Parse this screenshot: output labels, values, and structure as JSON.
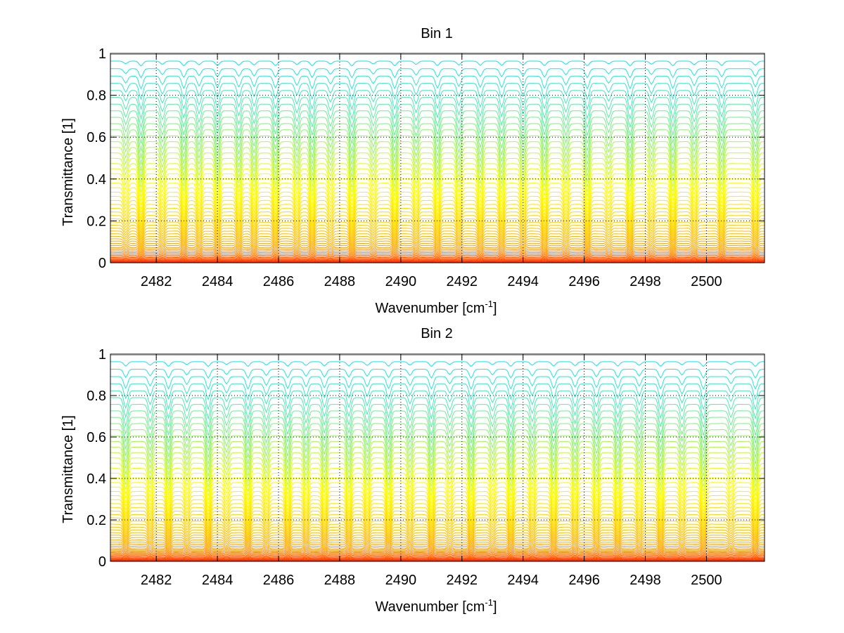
{
  "chart_data": [
    {
      "type": "line",
      "title": "Bin 1",
      "xlabel": "Wavenumber [cm",
      "xlabel_sup": "-1",
      "xlabel_end": "]",
      "ylabel": "Transmittance [1]",
      "xlim": [
        2480.5,
        2501.9
      ],
      "ylim": [
        0,
        1
      ],
      "xticks": [
        2482,
        2484,
        2486,
        2488,
        2490,
        2492,
        2494,
        2496,
        2498,
        2500
      ],
      "xtick_labels": [
        "2482",
        "2484",
        "2486",
        "2488",
        "2490",
        "2492",
        "2494",
        "2496",
        "2498",
        "2500"
      ],
      "yticks": [
        0,
        0.2,
        0.4,
        0.6,
        0.8,
        1
      ],
      "ytick_labels": [
        "0",
        "0.2",
        "0.4",
        "0.6",
        "0.8",
        "1"
      ],
      "grid": true,
      "line_count": 60,
      "colormap": [
        "#ff0000",
        "#ffa500",
        "#ffff00",
        "#00e0ff"
      ],
      "absorption_lines_x": [
        2481.0,
        2481.5,
        2482.2,
        2482.9,
        2483.4,
        2484.0,
        2484.7,
        2485.2,
        2485.9,
        2486.6,
        2487.1,
        2487.7,
        2488.4,
        2489.1,
        2489.8,
        2490.5,
        2491.2,
        2491.9,
        2492.6,
        2493.3,
        2494.0,
        2494.7,
        2495.4,
        2496.1,
        2496.8,
        2497.5,
        2498.2,
        2498.9,
        2499.6,
        2500.5,
        2501.6
      ]
    },
    {
      "type": "line",
      "title": "Bin 2",
      "xlabel": "Wavenumber [cm",
      "xlabel_sup": "-1",
      "xlabel_end": "]",
      "ylabel": "Transmittance [1]",
      "xlim": [
        2480.5,
        2501.9
      ],
      "ylim": [
        0,
        1
      ],
      "xticks": [
        2482,
        2484,
        2486,
        2488,
        2490,
        2492,
        2494,
        2496,
        2498,
        2500
      ],
      "xtick_labels": [
        "2482",
        "2484",
        "2486",
        "2488",
        "2490",
        "2492",
        "2494",
        "2496",
        "2498",
        "2500"
      ],
      "yticks": [
        0,
        0.2,
        0.4,
        0.6,
        0.8,
        1
      ],
      "ytick_labels": [
        "0",
        "0.2",
        "0.4",
        "0.6",
        "0.8",
        "1"
      ],
      "grid": true,
      "line_count": 60,
      "colormap": [
        "#ff0000",
        "#ffa500",
        "#ffff00",
        "#00e0ff"
      ],
      "absorption_lines_x": [
        2481.0,
        2481.8,
        2482.4,
        2483.0,
        2483.7,
        2484.3,
        2485.0,
        2485.6,
        2486.3,
        2486.9,
        2487.5,
        2488.3,
        2488.9,
        2489.6,
        2490.3,
        2491.0,
        2491.6,
        2492.3,
        2493.0,
        2493.6,
        2494.3,
        2495.0,
        2495.7,
        2496.4,
        2497.1,
        2497.8,
        2498.5,
        2499.2,
        2499.9,
        2500.8,
        2501.6
      ]
    }
  ]
}
